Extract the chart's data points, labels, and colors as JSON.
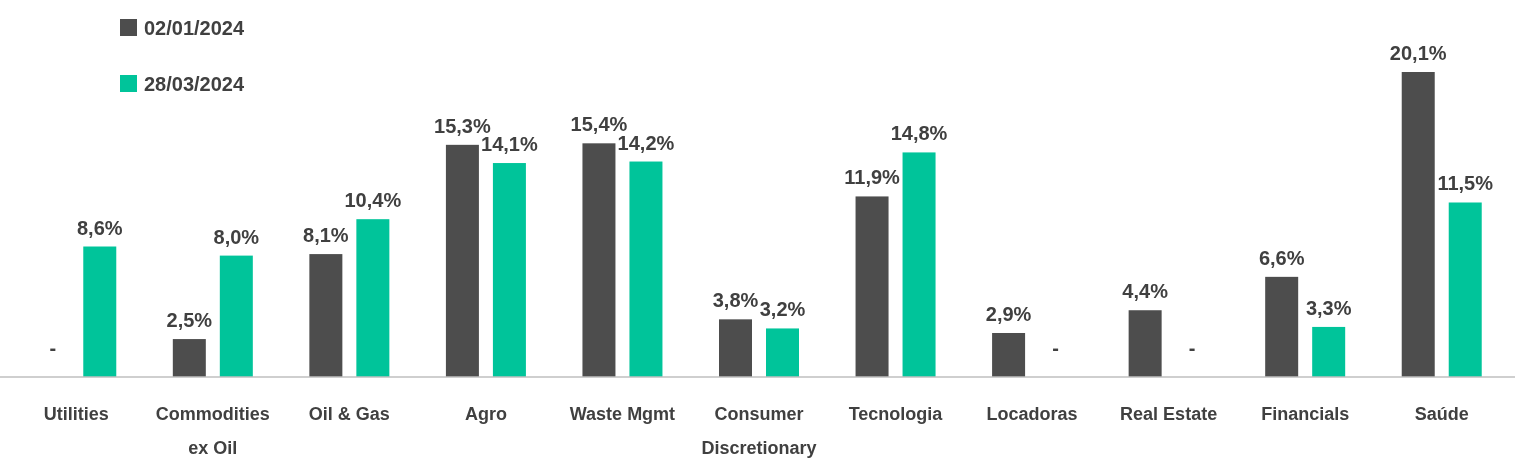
{
  "chart_data": {
    "type": "bar",
    "categories": [
      "Utilities",
      "Commodities ex Oil",
      "Oil & Gas",
      "Agro",
      "Waste Mgmt",
      "Consumer Discretionary",
      "Tecnologia",
      "Locadoras",
      "Real Estate",
      "Financials",
      "Saúde"
    ],
    "series": [
      {
        "name": "02/01/2024",
        "color": "#4d4d4d",
        "values": [
          null,
          2.5,
          8.1,
          15.3,
          15.4,
          3.8,
          11.9,
          2.9,
          4.4,
          6.6,
          20.1
        ],
        "value_labels": [
          "-",
          "2,5%",
          "8,1%",
          "15,3%",
          "15,4%",
          "3,8%",
          "11,9%",
          "2,9%",
          "4,4%",
          "6,6%",
          "20,1%"
        ]
      },
      {
        "name": "28/03/2024",
        "color": "#00c49a",
        "values": [
          8.6,
          8.0,
          10.4,
          14.1,
          14.2,
          3.2,
          14.8,
          null,
          null,
          3.3,
          11.5
        ],
        "value_labels": [
          "8,6%",
          "8,0%",
          "10,4%",
          "14,1%",
          "14,2%",
          "3,2%",
          "14,8%",
          "-",
          "-",
          "3,3%",
          "11,5%"
        ]
      }
    ],
    "legend": "top left"
  }
}
